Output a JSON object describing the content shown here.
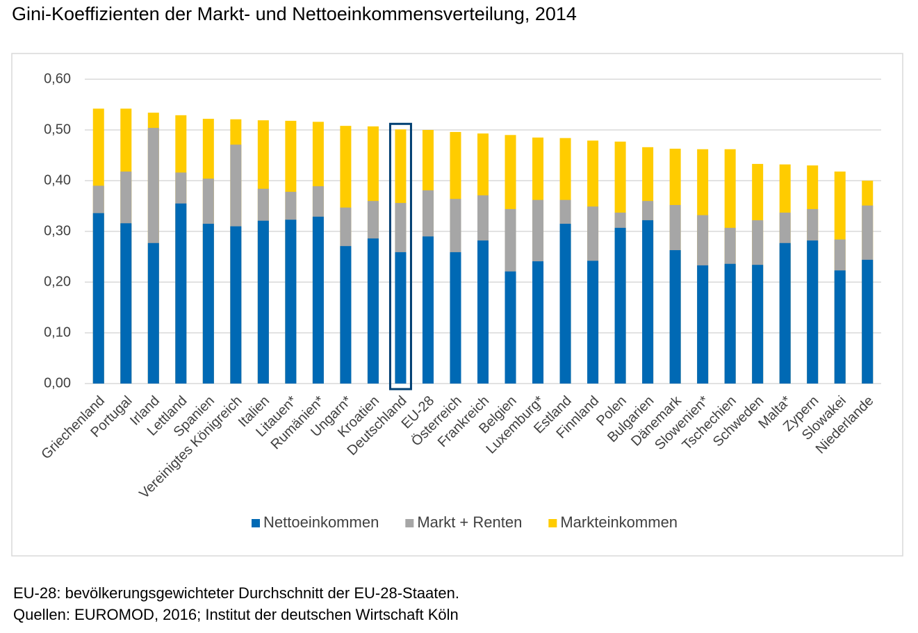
{
  "chart_data": {
    "type": "bar",
    "title": "Gini-Koeffizienten der Markt- und Nettoeinkommensverteilung, 2014",
    "categories": [
      "Griechenland",
      "Portugal",
      "Irland",
      "Lettland",
      "Spanien",
      "Vereinigtes Königreich",
      "Italien",
      "Litauen*",
      "Rumänien*",
      "Ungarn*",
      "Kroatien",
      "Deutschland",
      "EU-28",
      "Österreich",
      "Frankreich",
      "Belgien",
      "Luxemburg*",
      "Estland",
      "Finnland",
      "Polen",
      "Bulgarien",
      "Dänemark",
      "Slowenien*",
      "Tschechien",
      "Schweden",
      "Malta*",
      "Zypern",
      "Slowakei",
      "Niederlande"
    ],
    "series": [
      {
        "name": "Nettoeinkommen",
        "color": "#0069b4",
        "values": [
          0.336,
          0.316,
          0.277,
          0.355,
          0.315,
          0.31,
          0.321,
          0.323,
          0.329,
          0.271,
          0.286,
          0.259,
          0.29,
          0.259,
          0.282,
          0.221,
          0.241,
          0.315,
          0.242,
          0.307,
          0.322,
          0.263,
          0.233,
          0.236,
          0.234,
          0.277,
          0.282,
          0.223,
          0.244
        ]
      },
      {
        "name": "Markt + Renten",
        "color": "#a6a6a6",
        "values": [
          0.39,
          0.418,
          0.504,
          0.416,
          0.404,
          0.471,
          0.384,
          0.378,
          0.389,
          0.347,
          0.36,
          0.356,
          0.381,
          0.364,
          0.371,
          0.344,
          0.362,
          0.362,
          0.349,
          0.337,
          0.36,
          0.352,
          0.332,
          0.307,
          0.322,
          0.337,
          0.344,
          0.284,
          0.351
        ]
      },
      {
        "name": "Markteinkommen",
        "color": "#ffcc00",
        "values": [
          0.542,
          0.542,
          0.534,
          0.529,
          0.522,
          0.521,
          0.519,
          0.518,
          0.516,
          0.508,
          0.507,
          0.501,
          0.5,
          0.496,
          0.493,
          0.49,
          0.485,
          0.484,
          0.479,
          0.477,
          0.466,
          0.463,
          0.462,
          0.462,
          0.433,
          0.432,
          0.43,
          0.418,
          0.4
        ]
      }
    ],
    "overlap": true,
    "highlight": "Deutschland",
    "ylim": [
      0,
      0.6
    ],
    "yticks": [
      {
        "value": 0,
        "label": "0,00"
      },
      {
        "value": 0.1,
        "label": "0,10"
      },
      {
        "value": 0.2,
        "label": "0,20"
      },
      {
        "value": 0.3,
        "label": "0,30"
      },
      {
        "value": 0.4,
        "label": "0,40"
      },
      {
        "value": 0.5,
        "label": "0,50"
      },
      {
        "value": 0.6,
        "label": "0,60"
      }
    ],
    "grid": true,
    "legend": "bottom",
    "notes": [
      "EU-28: bevölkerungsgewichteter Durchschnitt der EU-28-Staaten.",
      "Quellen: EUROMOD, 2016; Institut der deutschen Wirtschaft Köln"
    ]
  }
}
